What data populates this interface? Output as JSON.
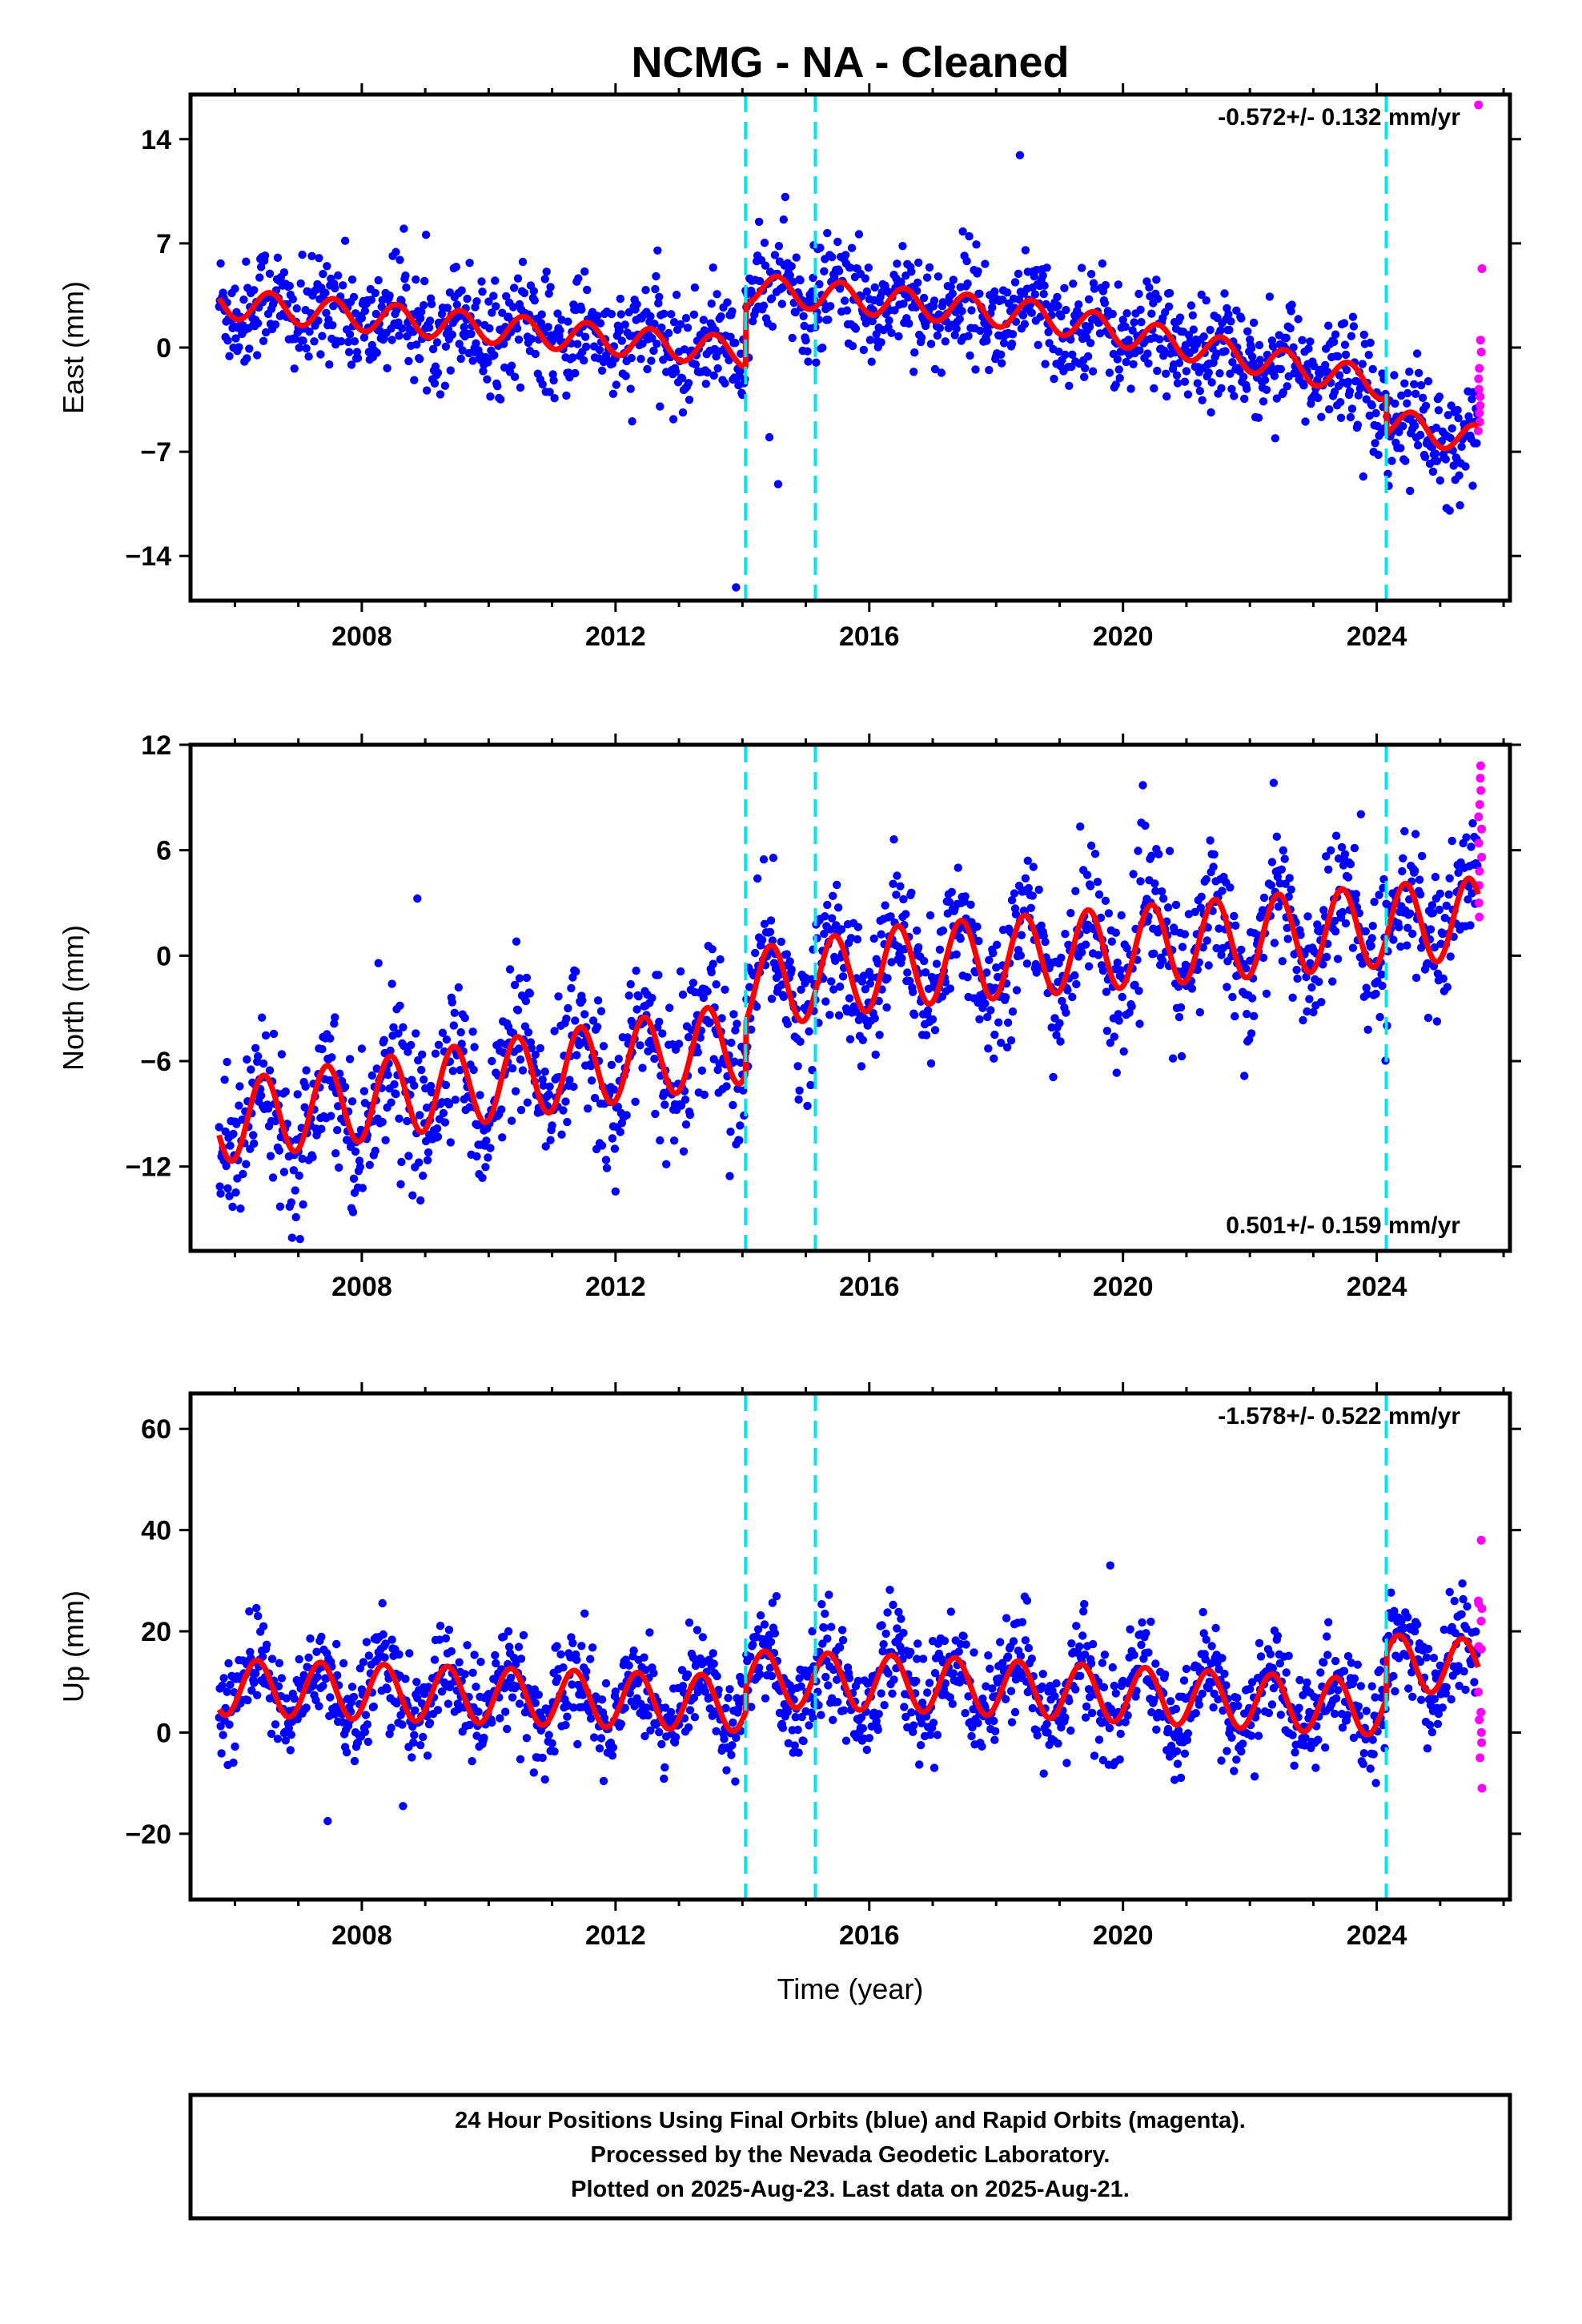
{
  "title": "NCMG  - NA - Cleaned",
  "xlabel": "Time (year)",
  "colors": {
    "final_orbits": "#0000ff",
    "rapid_orbits": "#ff00ff",
    "model": "#ff0000",
    "events": "#00e5ee",
    "frame": "#000000"
  },
  "footer": [
    "24 Hour Positions Using Final Orbits (blue) and Rapid Orbits (magenta).",
    "Processed by the Nevada Geodetic Laboratory.",
    "Plotted on 2025-Aug-23. Last data on 2025-Aug-21."
  ],
  "chart_data": [
    {
      "type": "scatter",
      "component": "East",
      "ylabel": "East (mm)",
      "rate_label": "-0.572+/- 0.132 mm/yr",
      "rate_position": "top-right",
      "xlim": [
        2005.3,
        2026.1
      ],
      "ylim": [
        -17,
        17
      ],
      "x_ticks": [
        2008,
        2012,
        2016,
        2020,
        2024
      ],
      "x_tick_labels": [
        "2008",
        "2012",
        "2016",
        "2020",
        "2024"
      ],
      "y_ticks": [
        14,
        7,
        0,
        -7,
        -14
      ],
      "y_tick_labels": [
        "14",
        "7",
        "0",
        "−7",
        "−14"
      ],
      "event_lines": [
        2014.05,
        2015.15,
        2024.15
      ],
      "model": {
        "start": 2005.75,
        "end": 2025.6,
        "offset_at_start": 3.0,
        "rate": -0.4,
        "annual_amplitude": 1.0,
        "annual_phase": 0.55,
        "steps": [
          {
            "year": 2014.05,
            "size": 4.3
          },
          {
            "year": 2024.15,
            "size": -2.5
          }
        ],
        "rate_changes": [
          {
            "year": 2018.7,
            "rate": -0.85
          }
        ]
      },
      "scatter_noise": 1.8,
      "rapid_points": [
        16.3,
        5.3,
        0.5,
        -0.3,
        -1.4,
        -2.1,
        -2.8,
        -3.3,
        -3.9,
        -4.4,
        -5.0,
        -5.6
      ]
    },
    {
      "type": "scatter",
      "component": "North",
      "ylabel": "North (mm)",
      "rate_label": "0.501+/- 0.159 mm/yr",
      "rate_position": "bottom-right",
      "xlim": [
        2005.3,
        2026.1
      ],
      "ylim": [
        -16.8,
        12
      ],
      "x_ticks": [
        2008,
        2012,
        2016,
        2020,
        2024
      ],
      "x_tick_labels": [
        "2008",
        "2012",
        "2016",
        "2020",
        "2024"
      ],
      "y_ticks": [
        12,
        6,
        0,
        -6,
        -12
      ],
      "y_tick_labels": [
        "12",
        "6",
        "0",
        "−6",
        "−12"
      ],
      "event_lines": [
        2014.05,
        2015.15,
        2024.15
      ],
      "model": {
        "start": 2005.75,
        "end": 2025.6,
        "offset_at_start": -9.5,
        "rate": 0.55,
        "annual_amplitude": 2.3,
        "annual_phase": 0.45,
        "steps": [
          {
            "year": 2014.05,
            "size": 3.0
          }
        ],
        "rate_changes": [
          {
            "year": 2016.5,
            "rate": 0.3
          }
        ]
      },
      "scatter_noise": 2.0,
      "rapid_points": [
        10.8,
        10.1,
        9.4,
        8.6,
        7.9,
        7.2,
        6.4,
        5.6,
        4.8,
        4.0,
        3.0,
        2.2
      ]
    },
    {
      "type": "scatter",
      "component": "Up",
      "ylabel": "Up (mm)",
      "rate_label": "-1.578+/- 0.522 mm/yr",
      "rate_position": "top-right",
      "xlim": [
        2005.3,
        2026.1
      ],
      "ylim": [
        -33,
        67
      ],
      "x_ticks": [
        2008,
        2012,
        2016,
        2020,
        2024
      ],
      "x_tick_labels": [
        "2008",
        "2012",
        "2016",
        "2020",
        "2024"
      ],
      "y_ticks": [
        60,
        40,
        20,
        0,
        -20
      ],
      "y_tick_labels": [
        "60",
        "40",
        "20",
        "0",
        "−20"
      ],
      "event_lines": [
        2014.05,
        2015.15,
        2024.15
      ],
      "model": {
        "start": 2005.75,
        "end": 2025.6,
        "offset_at_start": 9.0,
        "rate": -0.4,
        "annual_amplitude": 5.5,
        "annual_phase": 0.35,
        "steps": [
          {
            "year": 2014.05,
            "size": 5.0
          },
          {
            "year": 2024.15,
            "size": 9.0
          }
        ],
        "rate_changes": [
          {
            "year": 2017.0,
            "rate": -0.65
          }
        ]
      },
      "scatter_noise": 5.0,
      "rapid_points": [
        38.0,
        26.0,
        25.5,
        24.5,
        22.0,
        17.0,
        16.5,
        8.0,
        4.0,
        2.5,
        0.0,
        -2.0,
        -5.0,
        -11.0
      ]
    }
  ]
}
